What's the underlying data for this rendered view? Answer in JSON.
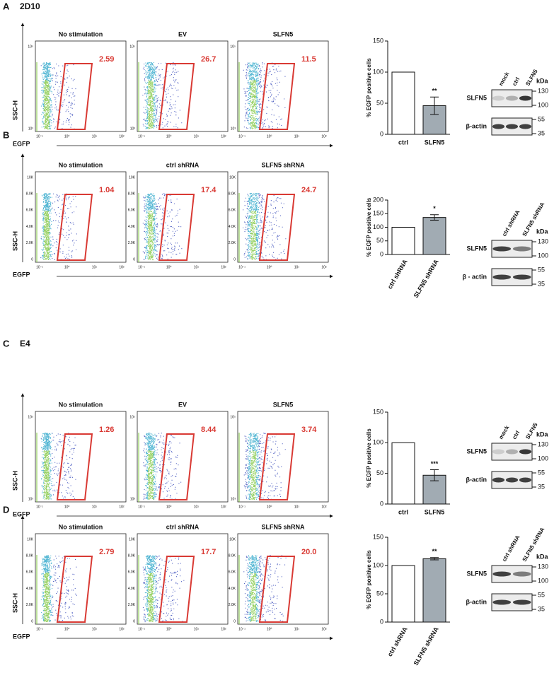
{
  "panels": [
    {
      "letter": "A",
      "cell_line": "2D10",
      "flow": {
        "plots": [
          {
            "title": "No stimulation",
            "gate_value": "2.59"
          },
          {
            "title": "EV",
            "gate_value": "26.7"
          },
          {
            "title": "SLFN5",
            "gate_value": "11.5"
          }
        ],
        "y_label": "SSC-H",
        "x_label": "EGFP",
        "y_ticks": [
          "10⁵",
          "10³"
        ],
        "x_ticks": [
          "10⁻¹",
          "10⁰",
          "10¹",
          "10²"
        ]
      },
      "bar_chart": {
        "type": "bar",
        "y_label": "% EGFP positive cells",
        "categories": [
          "ctrl",
          "SLFN5"
        ],
        "values": [
          100,
          46
        ],
        "errors": [
          null,
          14
        ],
        "ylim": [
          0,
          150
        ],
        "yticks": [
          0,
          50,
          100,
          150
        ],
        "annotation": "**",
        "colors": [
          "#ffffff",
          "#a1abb3"
        ],
        "rotate_labels": false
      },
      "blot": {
        "lanes": [
          "mock",
          "ctrl",
          "SLFN5"
        ],
        "unit": "kDa",
        "rows": [
          {
            "label": "SLFN5",
            "markers": [
              130,
              100
            ]
          },
          {
            "label": "β-actin",
            "markers": [
              55,
              35
            ]
          }
        ]
      }
    },
    {
      "letter": "B",
      "flow": {
        "plots": [
          {
            "title": "No stimulation",
            "gate_value": "1.04"
          },
          {
            "title": "ctrl shRNA",
            "gate_value": "17.4"
          },
          {
            "title": "SLFN5 shRNA",
            "gate_value": "24.7"
          }
        ],
        "y_label": "SSC-H",
        "x_label": "EGFP",
        "y_ticks": [
          "10K",
          "8.0K",
          "6.0K",
          "4.0K",
          "2.0K",
          "0"
        ],
        "x_ticks": [
          "10⁻¹",
          "10⁰",
          "10¹",
          "10²"
        ]
      },
      "bar_chart": {
        "type": "bar",
        "y_label": "% EGFP positive cells",
        "categories": [
          "ctrl shRNA",
          "SLFN5 shRNA"
        ],
        "values": [
          100,
          136
        ],
        "errors": [
          null,
          10
        ],
        "ylim": [
          0,
          200
        ],
        "yticks": [
          0,
          50,
          100,
          150,
          200
        ],
        "annotation": "*",
        "colors": [
          "#ffffff",
          "#a1abb3"
        ],
        "rotate_labels": true
      },
      "blot": {
        "lanes": [
          "ctrl shRNA",
          "SLFN5 shRNA"
        ],
        "unit": "kDa",
        "rows": [
          {
            "label": "SLFN5",
            "markers": [
              130,
              100
            ]
          },
          {
            "label": "β - actin",
            "markers": [
              55,
              35
            ]
          }
        ]
      }
    },
    {
      "letter": "C",
      "cell_line": "E4",
      "flow": {
        "plots": [
          {
            "title": "No stimulation",
            "gate_value": "1.26"
          },
          {
            "title": "EV",
            "gate_value": "8.44"
          },
          {
            "title": "SLFN5",
            "gate_value": "3.74"
          }
        ],
        "y_label": "SSC-H",
        "x_label": "EGFP",
        "y_ticks": [
          "10⁵",
          "10³"
        ],
        "x_ticks": [
          "10⁻¹",
          "10⁰",
          "10¹",
          "10²"
        ]
      },
      "bar_chart": {
        "type": "bar",
        "y_label": "% EGFP positive cells",
        "categories": [
          "ctrl",
          "SLFN5"
        ],
        "values": [
          100,
          47
        ],
        "errors": [
          null,
          9
        ],
        "ylim": [
          0,
          150
        ],
        "yticks": [
          0,
          50,
          100,
          150
        ],
        "annotation": "***",
        "colors": [
          "#ffffff",
          "#a1abb3"
        ],
        "rotate_labels": false
      },
      "blot": {
        "lanes": [
          "mock",
          "ctrl",
          "SLFN5"
        ],
        "unit": "kDa",
        "rows": [
          {
            "label": "SLFN5",
            "markers": [
              130,
              100
            ]
          },
          {
            "label": "β-actin",
            "markers": [
              55,
              35
            ]
          }
        ]
      }
    },
    {
      "letter": "D",
      "flow": {
        "plots": [
          {
            "title": "No stimulation",
            "gate_value": "2.79"
          },
          {
            "title": "ctrl shRNA",
            "gate_value": "17.7"
          },
          {
            "title": "SLFN5 shRNA",
            "gate_value": "20.0"
          }
        ],
        "y_label": "SSC-H",
        "x_label": "EGFP",
        "y_ticks": [
          "10K",
          "8.0K",
          "6.0K",
          "4.0K",
          "2.0K",
          "0"
        ],
        "x_ticks": [
          "10⁻¹",
          "10⁰",
          "10¹",
          "10²"
        ]
      },
      "bar_chart": {
        "type": "bar",
        "y_label": "% EGFP positive cells",
        "categories": [
          "ctrl shRNA",
          "SLFN5 shRNA"
        ],
        "values": [
          100,
          112
        ],
        "errors": [
          null,
          2
        ],
        "ylim": [
          0,
          150
        ],
        "yticks": [
          0,
          50,
          100,
          150
        ],
        "annotation": "**",
        "colors": [
          "#ffffff",
          "#a1abb3"
        ],
        "rotate_labels": true
      },
      "blot": {
        "lanes": [
          "ctrl shRNA",
          "SLFN5 shRNA"
        ],
        "unit": "kDa",
        "rows": [
          {
            "label": "SLFN5",
            "markers": [
              130,
              100
            ]
          },
          {
            "label": "β-actin",
            "markers": [
              55,
              35
            ]
          }
        ]
      }
    }
  ]
}
